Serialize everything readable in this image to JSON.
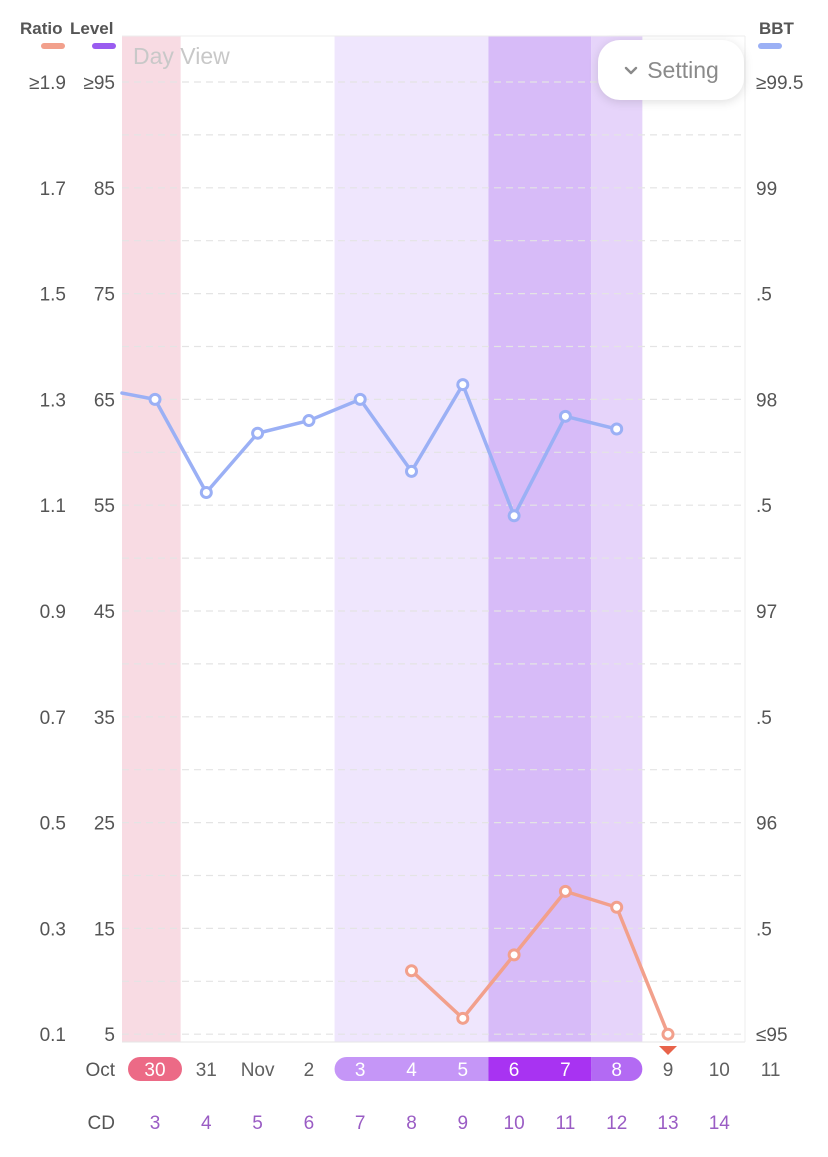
{
  "legend": {
    "ratio": {
      "label": "Ratio",
      "color": "#f2a08c"
    },
    "level": {
      "label": "Level",
      "color": "#9a5cf0"
    },
    "bbt": {
      "label": "BBT",
      "color": "#9bb0f5"
    }
  },
  "view_label": "Day View",
  "setting_button": {
    "label": "Setting",
    "icon": "chevron-down-icon"
  },
  "chart_data": {
    "type": "line",
    "left_axes": {
      "ratio_ticks": [
        "≥1.9",
        "1.7",
        "1.5",
        "1.3",
        "1.1",
        "0.9",
        "0.7",
        "0.5",
        "0.3",
        "0.1"
      ],
      "level_ticks": [
        "≥95",
        "85",
        "75",
        "65",
        "55",
        "45",
        "35",
        "25",
        "15",
        "5"
      ],
      "level_range": [
        5,
        95
      ],
      "ratio_range": [
        0.1,
        1.9
      ]
    },
    "right_axis": {
      "ticks": [
        "≥99.5",
        "99",
        ".5",
        "98",
        ".5",
        "97",
        ".5",
        "96",
        ".5",
        "≤95"
      ],
      "range": [
        95,
        99.5
      ]
    },
    "grid": true,
    "days": [
      {
        "date": "30",
        "cd": "3"
      },
      {
        "date": "31",
        "cd": "4"
      },
      {
        "date": "Nov",
        "cd": "5"
      },
      {
        "date": "2",
        "cd": "6"
      },
      {
        "date": "3",
        "cd": "7"
      },
      {
        "date": "4",
        "cd": "8"
      },
      {
        "date": "5",
        "cd": "9"
      },
      {
        "date": "6",
        "cd": "10"
      },
      {
        "date": "7",
        "cd": "11"
      },
      {
        "date": "8",
        "cd": "12"
      },
      {
        "date": "9",
        "cd": "13"
      },
      {
        "date": "10",
        "cd": "14"
      },
      {
        "date": "11",
        "cd": ""
      }
    ],
    "month_label": "Oct",
    "cd_label": "CD",
    "series": [
      {
        "name": "BBT",
        "color": "#9bb0f5",
        "day_index": [
          0,
          1,
          2,
          3,
          4,
          5,
          6,
          7,
          8,
          9
        ],
        "values": [
          98.0,
          97.56,
          97.84,
          97.9,
          98.0,
          97.66,
          98.07,
          97.45,
          97.92,
          97.86
        ]
      },
      {
        "name": "Ratio",
        "color": "#f2a08c",
        "day_index": [
          5,
          6,
          7,
          8,
          9,
          10
        ],
        "values": [
          0.22,
          0.13,
          0.25,
          0.37,
          0.34,
          0.1
        ]
      }
    ],
    "bbt_lead_in": 98.03,
    "period_band": {
      "from_index": -0.66,
      "to_index": 0.5,
      "color": "#f8dbe3"
    },
    "level_bands": [
      {
        "from_index": 3.5,
        "to_index": 6.5,
        "color": "#efe6fd"
      },
      {
        "from_index": 6.5,
        "to_index": 8.5,
        "color": "#d7bbf8"
      },
      {
        "from_index": 8.5,
        "to_index": 9.5,
        "color": "#e6d4fa"
      }
    ],
    "period_pill": {
      "index": 0,
      "color": "#ec6a86"
    },
    "level_pill_segments": [
      {
        "from_index": 4,
        "to_index": 6,
        "color": "#c596f7"
      },
      {
        "from_index": 7,
        "to_index": 8,
        "color": "#a833f2"
      },
      {
        "from_index": 9,
        "to_index": 9,
        "color": "#b36af3"
      }
    ],
    "below_range_marker": {
      "day_index": 10,
      "color": "#e8634a"
    },
    "day_text_color": "#606060",
    "cd_text_color": "#9a5cc4"
  }
}
